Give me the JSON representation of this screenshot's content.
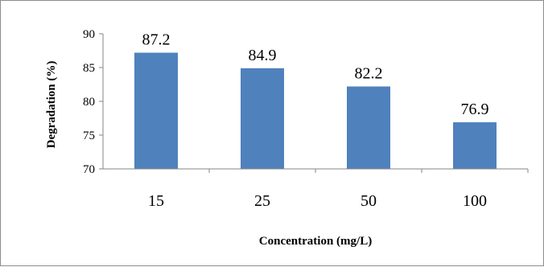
{
  "chart_data": {
    "type": "bar",
    "categories": [
      "15",
      "25",
      "50",
      "100"
    ],
    "values": [
      87.2,
      84.9,
      82.2,
      76.9
    ],
    "data_labels": [
      "87.2",
      "84.9",
      "82.2",
      "76.9"
    ],
    "xlabel": "Concentration (mg/L)",
    "ylabel": "Degradation (%)",
    "ylim": [
      70,
      90
    ],
    "yticks": [
      70,
      75,
      80,
      85,
      90
    ],
    "grid": false,
    "legend": "none",
    "bar_color": "#4f81bd",
    "axis_color": "#868686"
  }
}
